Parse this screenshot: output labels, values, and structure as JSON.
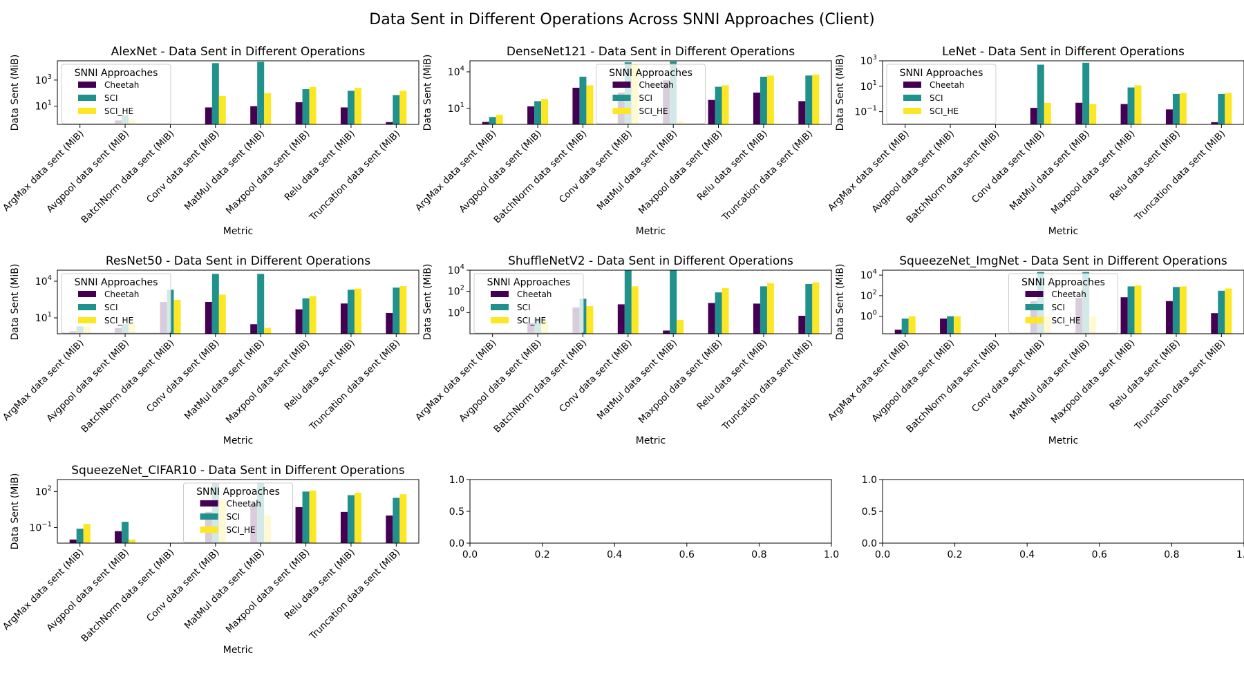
{
  "figure": {
    "title": "Data Sent in Different Operations Across SNNI Approaches (Client)"
  },
  "colors": {
    "Cheetah": "#440154",
    "SCI": "#21918c",
    "SCI_HE": "#fde725"
  },
  "chart_data": [
    {
      "type": "bar",
      "title": "AlexNet - Data Sent in Different Operations",
      "xlabel": "Metric",
      "ylabel": "Data Sent (MiB)",
      "yscale": "log",
      "ylim": [
        0.4,
        30000
      ],
      "yticks": [
        {
          "value": 10,
          "label": "10^1"
        },
        {
          "value": 1000,
          "label": "10^3"
        }
      ],
      "categories": [
        "ArgMax data sent (MiB)",
        "Avgpool data sent (MiB)",
        "BatchNorm data sent (MiB)",
        "Conv data sent (MiB)",
        "MatMul data sent (MiB)",
        "Maxpool data sent (MiB)",
        "Relu data sent (MiB)",
        "Truncation data sent (MiB)"
      ],
      "legend": {
        "title": "SNNI Approaches",
        "placement": "upper left"
      },
      "series": [
        {
          "name": "Cheetah",
          "values": [
            null,
            0.8,
            null,
            8,
            10,
            20,
            8,
            0.6
          ]
        },
        {
          "name": "SCI",
          "values": [
            null,
            2,
            null,
            20000,
            25000,
            200,
            150,
            70
          ]
        },
        {
          "name": "SCI_HE",
          "values": [
            null,
            1,
            null,
            60,
            100,
            300,
            250,
            150
          ]
        }
      ]
    },
    {
      "type": "bar",
      "title": "DenseNet121 - Data Sent in Different Operations",
      "xlabel": "Metric",
      "ylabel": "Data Sent (MiB)",
      "yscale": "log",
      "ylim": [
        0.5,
        80000
      ],
      "yticks": [
        {
          "value": 10,
          "label": "10^1"
        },
        {
          "value": 10000,
          "label": "10^4"
        }
      ],
      "categories": [
        "ArgMax data sent (MiB)",
        "Avgpool data sent (MiB)",
        "BatchNorm data sent (MiB)",
        "Conv data sent (MiB)",
        "MatMul data sent (MiB)",
        "Maxpool data sent (MiB)",
        "Relu data sent (MiB)",
        "Truncation data sent (MiB)"
      ],
      "legend": {
        "title": "SNNI Approaches",
        "placement": "upper center"
      },
      "series": [
        {
          "name": "Cheetah",
          "values": [
            0.8,
            15,
            500,
            200,
            2000,
            50,
            200,
            40
          ]
        },
        {
          "name": "SCI",
          "values": [
            2,
            40,
            4000,
            60000,
            70000,
            600,
            4000,
            5000
          ]
        },
        {
          "name": "SCI_HE",
          "values": [
            3,
            60,
            800,
            40000,
            1,
            800,
            5000,
            6000
          ]
        }
      ]
    },
    {
      "type": "bar",
      "title": "LeNet - Data Sent in Different Operations",
      "xlabel": "Metric",
      "ylabel": "Data Sent (MiB)",
      "yscale": "log",
      "ylim": [
        0.01,
        1000
      ],
      "yticks": [
        {
          "value": 0.1,
          "label": "10^-1"
        },
        {
          "value": 10,
          "label": "10^1"
        },
        {
          "value": 1000,
          "label": "10^3"
        }
      ],
      "categories": [
        "ArgMax data sent (MiB)",
        "Avgpool data sent (MiB)",
        "BatchNorm data sent (MiB)",
        "Conv data sent (MiB)",
        "MatMul data sent (MiB)",
        "Maxpool data sent (MiB)",
        "Relu data sent (MiB)",
        "Truncation data sent (MiB)"
      ],
      "legend": {
        "title": "SNNI Approaches",
        "placement": "upper left"
      },
      "series": [
        {
          "name": "Cheetah",
          "values": [
            null,
            null,
            null,
            0.2,
            0.5,
            0.4,
            0.15,
            0.015
          ]
        },
        {
          "name": "SCI",
          "values": [
            null,
            null,
            null,
            500,
            700,
            8,
            2.5,
            2.5
          ]
        },
        {
          "name": "SCI_HE",
          "values": [
            null,
            null,
            null,
            0.5,
            0.4,
            12,
            3,
            3
          ]
        }
      ]
    },
    {
      "type": "bar",
      "title": "ResNet50 - Data Sent in Different Operations",
      "xlabel": "Metric",
      "ylabel": "Data Sent (MiB)",
      "yscale": "log",
      "ylim": [
        0.5,
        80000
      ],
      "yticks": [
        {
          "value": 10,
          "label": "10^1"
        },
        {
          "value": 10000,
          "label": "10^4"
        }
      ],
      "categories": [
        "ArgMax data sent (MiB)",
        "Avgpool data sent (MiB)",
        "BatchNorm data sent (MiB)",
        "Conv data sent (MiB)",
        "MatMul data sent (MiB)",
        "Maxpool data sent (MiB)",
        "Relu data sent (MiB)",
        "Truncation data sent (MiB)"
      ],
      "legend": {
        "title": "SNNI Approaches",
        "placement": "upper left"
      },
      "series": [
        {
          "name": "Cheetah",
          "values": [
            0.8,
            1.5,
            200,
            200,
            3,
            50,
            150,
            25
          ]
        },
        {
          "name": "SCI",
          "values": [
            2,
            3,
            2000,
            40000,
            40000,
            400,
            2000,
            3000
          ]
        },
        {
          "name": "SCI_HE",
          "values": [
            2,
            3,
            300,
            800,
            1.5,
            600,
            2500,
            4000
          ]
        }
      ]
    },
    {
      "type": "bar",
      "title": "ShuffleNetV2 - Data Sent in Different Operations",
      "xlabel": "Metric",
      "ylabel": "Data Sent (MiB)",
      "yscale": "log",
      "ylim": [
        0.01,
        10000
      ],
      "yticks": [
        {
          "value": 1,
          "label": "10^0"
        },
        {
          "value": 100,
          "label": "10^2"
        },
        {
          "value": 10000,
          "label": "10^4"
        }
      ],
      "categories": [
        "ArgMax data sent (MiB)",
        "Avgpool data sent (MiB)",
        "BatchNorm data sent (MiB)",
        "Conv data sent (MiB)",
        "MatMul data sent (MiB)",
        "Maxpool data sent (MiB)",
        "Relu data sent (MiB)",
        "Truncation data sent (MiB)"
      ],
      "legend": {
        "title": "SNNI Approaches",
        "placement": "upper left"
      },
      "series": [
        {
          "name": "Cheetah",
          "values": [
            null,
            0.1,
            3,
            6,
            0.02,
            8,
            7,
            0.5
          ]
        },
        {
          "name": "SCI",
          "values": [
            null,
            0.3,
            20,
            10000,
            10000,
            80,
            300,
            500
          ]
        },
        {
          "name": "SCI_HE",
          "values": [
            null,
            0.2,
            4,
            300,
            0.2,
            200,
            600,
            700
          ]
        }
      ]
    },
    {
      "type": "bar",
      "title": "SqueezeNet_ImgNet - Data Sent in Different Operations",
      "xlabel": "Metric",
      "ylabel": "Data Sent (MiB)",
      "yscale": "log",
      "ylim": [
        0.02,
        30000
      ],
      "yticks": [
        {
          "value": 1,
          "label": "10^0"
        },
        {
          "value": 100,
          "label": "10^2"
        },
        {
          "value": 10000,
          "label": "10^4"
        }
      ],
      "categories": [
        "ArgMax data sent (MiB)",
        "Avgpool data sent (MiB)",
        "BatchNorm data sent (MiB)",
        "Conv data sent (MiB)",
        "MatMul data sent (MiB)",
        "Maxpool data sent (MiB)",
        "Relu data sent (MiB)",
        "Truncation data sent (MiB)"
      ],
      "legend": {
        "title": "SNNI Approaches",
        "placement": "upper center"
      },
      "series": [
        {
          "name": "Cheetah",
          "values": [
            0.05,
            0.6,
            null,
            30,
            60,
            70,
            30,
            2
          ]
        },
        {
          "name": "SCI",
          "values": [
            0.6,
            1,
            null,
            20000,
            20000,
            800,
            700,
            300
          ]
        },
        {
          "name": "SCI_HE",
          "values": [
            1,
            1,
            null,
            1,
            1,
            1000,
            800,
            500
          ]
        }
      ]
    },
    {
      "type": "bar",
      "title": "SqueezeNet_CIFAR10 - Data Sent in Different Operations",
      "xlabel": "Metric",
      "ylabel": "Data Sent (MiB)",
      "yscale": "log",
      "ylim": [
        0.005,
        1000
      ],
      "yticks": [
        {
          "value": 0.1,
          "label": "10^-1"
        },
        {
          "value": 100,
          "label": "10^2"
        }
      ],
      "categories": [
        "ArgMax data sent (MiB)",
        "Avgpool data sent (MiB)",
        "BatchNorm data sent (MiB)",
        "Conv data sent (MiB)",
        "MatMul data sent (MiB)",
        "Maxpool data sent (MiB)",
        "Relu data sent (MiB)",
        "Truncation data sent (MiB)"
      ],
      "legend": {
        "title": "SNNI Approaches",
        "placement": "upper center"
      },
      "series": [
        {
          "name": "Cheetah",
          "values": [
            0.01,
            0.05,
            null,
            2,
            10,
            5,
            2,
            1
          ]
        },
        {
          "name": "SCI",
          "values": [
            0.08,
            0.3,
            null,
            500,
            500,
            100,
            50,
            30
          ]
        },
        {
          "name": "SCI_HE",
          "values": [
            0.2,
            0.01,
            null,
            20,
            1,
            120,
            80,
            60
          ]
        }
      ]
    },
    {
      "type": "empty",
      "xlim": [
        0,
        1
      ],
      "ylim": [
        0,
        1
      ],
      "xticks": [
        "0.0",
        "0.2",
        "0.4",
        "0.6",
        "0.8",
        "1.0"
      ],
      "yticks": [
        "0.0",
        "0.5",
        "1.0"
      ]
    },
    {
      "type": "empty",
      "xlim": [
        0,
        1
      ],
      "ylim": [
        0,
        1
      ],
      "xticks": [
        "0.0",
        "0.2",
        "0.4",
        "0.6",
        "0.8",
        "1.0"
      ],
      "yticks": [
        "0.0",
        "0.5",
        "1.0"
      ]
    }
  ]
}
